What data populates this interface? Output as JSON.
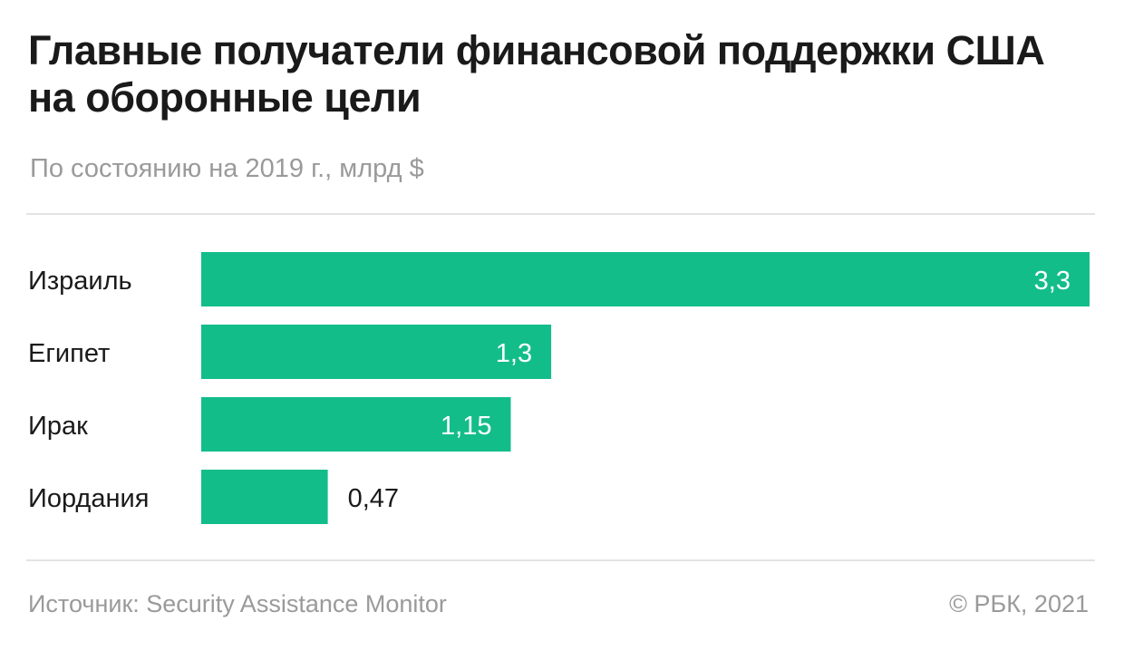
{
  "header": {
    "title": "Главные получатели финансовой поддержки США на оборонные цели",
    "subtitle": "По состоянию на 2019 г., млрд $"
  },
  "footer": {
    "source": "Источник: Security Assistance Monitor",
    "copyright": "© РБК, 2021"
  },
  "colors": {
    "bar": "#13bd8a",
    "label_inside": "#ffffff",
    "label_outside": "#1a1a1a"
  },
  "chart_data": {
    "type": "bar",
    "orientation": "horizontal",
    "title": "Главные получатели финансовой поддержки США на оборонные цели",
    "subtitle": "По состоянию на 2019 г., млрд $",
    "categories": [
      "Израиль",
      "Египет",
      "Ирак",
      "Иордания"
    ],
    "values": [
      3.3,
      1.3,
      1.15,
      0.47
    ],
    "value_labels": [
      "3,3",
      "1,3",
      "1,15",
      "0,47"
    ],
    "xlim": [
      0,
      3.3
    ],
    "unit": "млрд $",
    "grid": false,
    "legend": "none"
  }
}
